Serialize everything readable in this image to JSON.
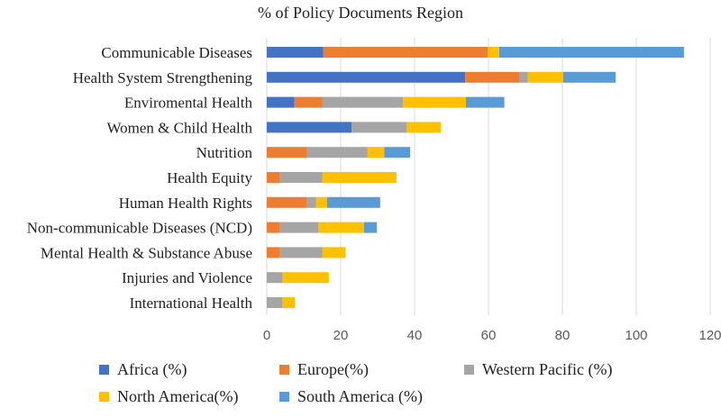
{
  "chart_data": {
    "type": "bar",
    "orientation": "horizontal",
    "stacked": true,
    "title": "% of Policy Documents Region",
    "xlabel": "",
    "ylabel": "",
    "xlim": [
      0,
      120
    ],
    "xticks": [
      0,
      20,
      40,
      60,
      80,
      100,
      120
    ],
    "grid": "vertical",
    "legend_position": "bottom",
    "categories": [
      "Communicable Diseases",
      "Health System Strengthening",
      "Enviromental Health",
      "Women & Child Health",
      "Nutrition",
      "Health Equity",
      "Human Health Rights",
      "Non-communicable Diseases (NCD)",
      "Mental Health & Substance Abuse",
      "Injuries and Violence",
      "International Health"
    ],
    "series": [
      {
        "name": "Africa (%)",
        "color": "#4472C4",
        "values": [
          15.3,
          53.7,
          7.5,
          23.0,
          0,
          0,
          0,
          0,
          0,
          0,
          0
        ]
      },
      {
        "name": "Europe(%)",
        "color": "#ED7D31",
        "values": [
          44.5,
          14.7,
          7.5,
          0,
          10.9,
          3.6,
          10.9,
          3.6,
          3.6,
          0,
          0
        ]
      },
      {
        "name": "Western Pacific (%)",
        "color": "#A5A5A5",
        "values": [
          0,
          2.3,
          21.9,
          14.9,
          16.3,
          11.4,
          2.4,
          10.3,
          11.4,
          4.3,
          4.3
        ]
      },
      {
        "name": "North America(%)",
        "color": "#FFC000",
        "values": [
          3.1,
          9.5,
          17.0,
          9.2,
          4.6,
          20.1,
          3.0,
          12.4,
          6.3,
          12.5,
          3.3
        ]
      },
      {
        "name": "South America (%)",
        "color": "#5B9BD5",
        "values": [
          50.0,
          14.2,
          10.4,
          0,
          7.0,
          0,
          14.4,
          3.5,
          0,
          0,
          0
        ]
      }
    ]
  }
}
